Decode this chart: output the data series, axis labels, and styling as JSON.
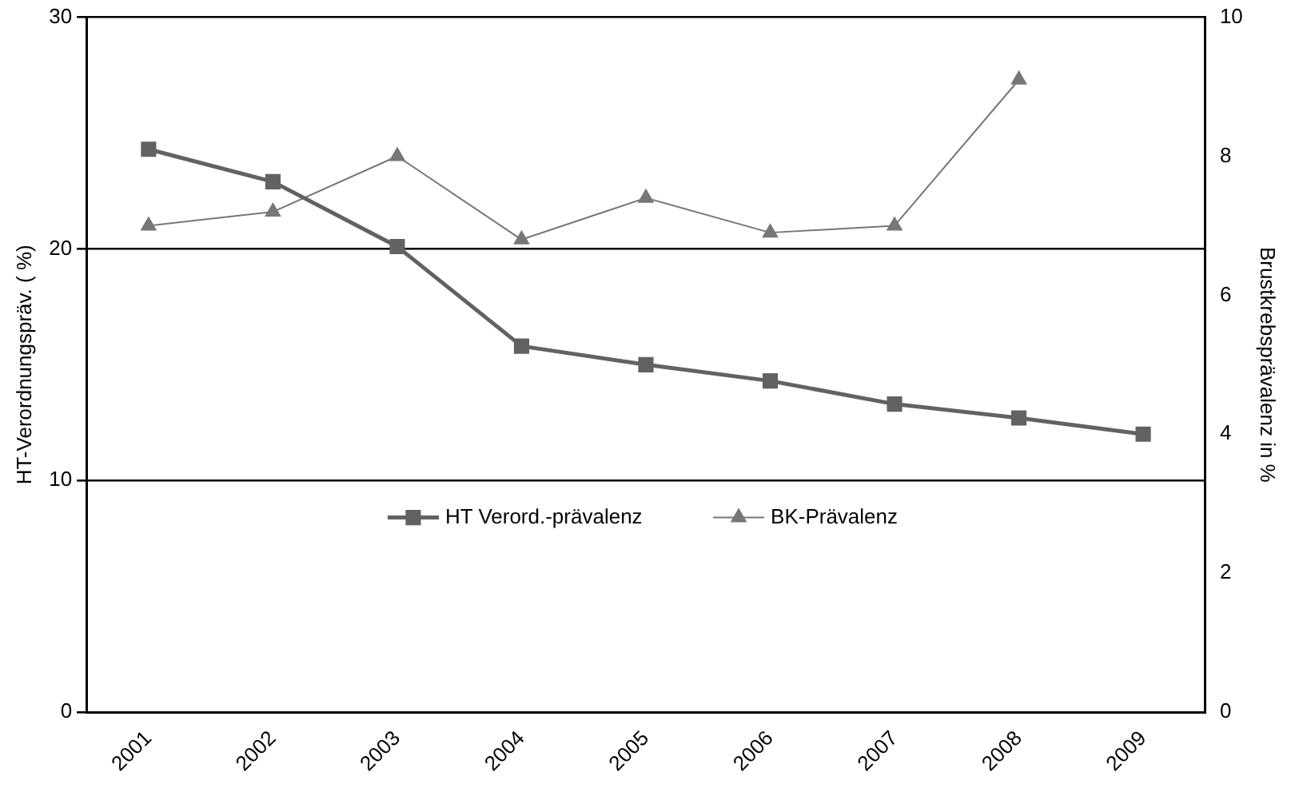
{
  "chart_data": {
    "type": "line",
    "ylabel": "HT-Verordnungspräv. ( %)",
    "y2label": "Brustkrebsprävalenz in %",
    "categories": [
      "2001",
      "2002",
      "2003",
      "2004",
      "2005",
      "2006",
      "2007",
      "2008",
      "2009"
    ],
    "series": [
      {
        "name": "HT Verord.-prävalenz",
        "color": "#626262",
        "marker": "square",
        "values": [
          24.3,
          22.9,
          20.1,
          15.8,
          15.0,
          14.3,
          13.3,
          12.7,
          12.0
        ]
      },
      {
        "name": "BK-Prävalenz",
        "color": "#777777",
        "marker": "triangle",
        "axis": "y2",
        "values": [
          7.0,
          7.2,
          8.0,
          6.8,
          7.4,
          6.9,
          7.0,
          9.1,
          null
        ]
      }
    ],
    "ylim": [
      0,
      30
    ],
    "yticks": [
      0,
      10,
      20,
      30
    ],
    "y2lim": [
      0,
      10
    ],
    "y2ticks": [
      0,
      2,
      4,
      6,
      8,
      10
    ],
    "grid": "y",
    "legend": "bottom",
    "line_style": "solid"
  }
}
